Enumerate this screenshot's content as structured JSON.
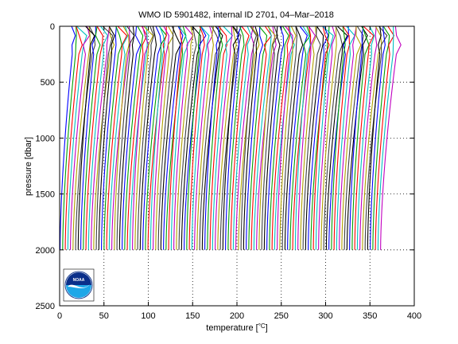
{
  "chart_data": {
    "type": "line",
    "title": "WMO ID 5901482, internal ID 2701, 04–Mar–2018",
    "xlabel": "temperature [",
    "xlabel_unit": "°C",
    "xlabel_close": "]",
    "ylabel": "pressure [dbar]",
    "xlim": [
      0,
      400
    ],
    "ylim": [
      2500,
      0
    ],
    "y_reversed": true,
    "x_ticks": [
      0,
      50,
      100,
      150,
      200,
      250,
      300,
      350,
      400
    ],
    "x_tick_labels": [
      "0",
      "50",
      "100",
      "150",
      "200",
      "250",
      "300",
      "350",
      "400"
    ],
    "y_ticks": [
      0,
      500,
      1000,
      1500,
      2000,
      2500
    ],
    "y_tick_labels": [
      "0",
      "500",
      "1000",
      "1500",
      "2000",
      "2500"
    ],
    "grid": "dotted",
    "legend": "none",
    "profile_count": 125,
    "first_profile_bottom_temp": 0.5,
    "last_profile_bottom_temp": 362,
    "surface_temp_offset": 20,
    "profile_max_pressure": 2000,
    "series_colors": [
      "#0000ff",
      "#00a000",
      "#ff0000",
      "#00c0c0",
      "#c000c0",
      "#b0a000",
      "#404040",
      "#000000"
    ],
    "logo": {
      "name": "noaa-logo",
      "text": "NOAA",
      "colors": {
        "ring": "#ffffff",
        "sky": "#0a2f8a",
        "sea": "#1ea7e8",
        "bird": "#ffffff"
      }
    }
  }
}
